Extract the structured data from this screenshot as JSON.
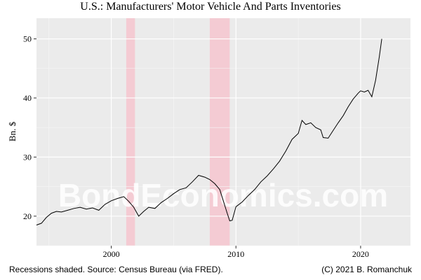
{
  "chart_data": {
    "type": "line",
    "title": "U.S.: Manufacturers' Motor Vehicle And Parts Inventories",
    "ylabel": "Bn. $",
    "xlabel": "",
    "x_ticks": [
      2000,
      2010,
      2020
    ],
    "y_ticks": [
      20,
      30,
      40,
      50
    ],
    "xlim": [
      1994.0,
      2024.0
    ],
    "ylim": [
      15.0,
      53.5
    ],
    "grid": true,
    "recessions": [
      {
        "start": 2001.2,
        "end": 2001.9
      },
      {
        "start": 2007.9,
        "end": 2009.5
      }
    ],
    "watermark": "BondEconomics.com",
    "series": [
      {
        "x": [
          1994.0,
          1994.4,
          1994.8,
          1995.2,
          1995.6,
          1996.0,
          1996.5,
          1997.0,
          1997.5,
          1998.0,
          1998.5,
          1999.0,
          1999.5,
          2000.0,
          2000.5,
          2001.0,
          2001.4,
          2001.8,
          2002.2,
          2002.6,
          2003.0,
          2003.5,
          2004.0,
          2004.5,
          2005.0,
          2005.5,
          2006.0,
          2006.5,
          2007.0,
          2007.5,
          2007.9,
          2008.3,
          2008.7,
          2009.0,
          2009.3,
          2009.5,
          2009.7,
          2010.0,
          2010.5,
          2011.0,
          2011.5,
          2012.0,
          2012.5,
          2013.0,
          2013.5,
          2014.0,
          2014.5,
          2015.0,
          2015.3,
          2015.6,
          2016.0,
          2016.4,
          2016.8,
          2017.0,
          2017.4,
          2017.8,
          2018.2,
          2018.6,
          2019.0,
          2019.4,
          2019.8,
          2020.0,
          2020.3,
          2020.6,
          2020.9,
          2021.2,
          2021.5,
          2021.7
        ],
        "y": [
          18.5,
          18.8,
          19.8,
          20.5,
          20.8,
          20.7,
          21.0,
          21.3,
          21.5,
          21.2,
          21.4,
          21.0,
          22.0,
          22.6,
          23.0,
          23.3,
          22.5,
          21.5,
          20.0,
          20.8,
          21.5,
          21.3,
          22.3,
          23.0,
          23.8,
          24.5,
          24.8,
          25.8,
          26.9,
          26.6,
          26.2,
          25.5,
          24.5,
          22.5,
          20.5,
          19.2,
          19.3,
          21.6,
          22.4,
          23.5,
          24.5,
          25.8,
          26.8,
          28.0,
          29.3,
          31.0,
          33.0,
          34.0,
          36.2,
          35.5,
          35.8,
          35.0,
          34.6,
          33.3,
          33.2,
          34.5,
          35.8,
          37.0,
          38.5,
          39.8,
          40.8,
          41.2,
          41.0,
          41.3,
          40.2,
          43.0,
          47.0,
          50.0
        ]
      }
    ]
  },
  "footer": {
    "left": "Recessions shaded. Source: Census Bureau (via FRED).",
    "right": "(C) 2021 B. Romanchuk"
  },
  "colors": {
    "panel_bg": "#ebebeb",
    "grid": "#ffffff",
    "recession": "#f4cbd3",
    "line": "#000000",
    "watermark": "#ffffff"
  }
}
